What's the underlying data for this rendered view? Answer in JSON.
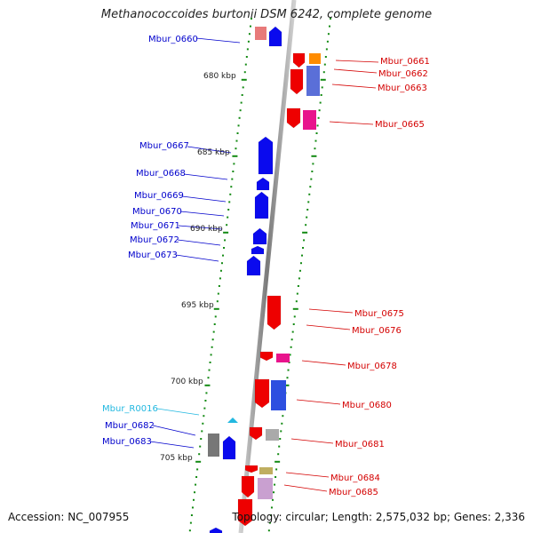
{
  "title": "Methanococcoides burtonii DSM 6242, complete genome",
  "accession": "Accession: NC_007955",
  "summary": "Topology: circular; Length: 2,575,032 bp; Genes: 2,336",
  "colors": {
    "forward_label": "#d40000",
    "reverse_label": "#0000cc",
    "rna_label": "#22b8e0",
    "backbone": "#8a8a8a",
    "tick": "#138a13"
  },
  "kbp_labels": [
    "680 kbp",
    "685 kbp",
    "690 kbp",
    "695 kbp",
    "700 kbp",
    "705 kbp"
  ],
  "genes_reverse": [
    "Mbur_0660",
    "Mbur_0667",
    "Mbur_0668",
    "Mbur_0669",
    "Mbur_0670",
    "Mbur_0671",
    "Mbur_0672",
    "Mbur_0673",
    "Mbur_0682",
    "Mbur_0683"
  ],
  "genes_forward": [
    "Mbur_0661",
    "Mbur_0662",
    "Mbur_0663",
    "Mbur_0665",
    "Mbur_0675",
    "Mbur_0676",
    "Mbur_0678",
    "Mbur_0680",
    "Mbur_0681",
    "Mbur_0684",
    "Mbur_0685"
  ],
  "genes_rna": [
    "Mbur_R0016"
  ]
}
